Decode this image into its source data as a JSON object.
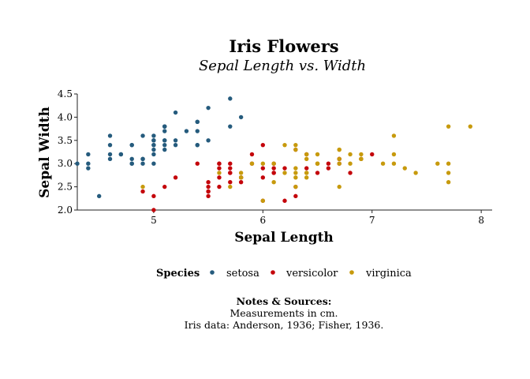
{
  "chart_data": {
    "type": "scatter",
    "title": "Iris Flowers",
    "subtitle": "Sepal Length vs. Width",
    "xlabel": "Sepal Length",
    "ylabel": "Sepal Width",
    "xlim": [
      4.3,
      8.1
    ],
    "ylim": [
      2.0,
      4.5
    ],
    "x_ticks": [
      "5",
      "6",
      "7",
      "8"
    ],
    "y_ticks": [
      "2.0",
      "2.5",
      "3.0",
      "3.5",
      "4.0",
      "4.5"
    ],
    "grid": false,
    "legend": {
      "title": "Species",
      "placement": "bottom"
    },
    "series": [
      {
        "name": "setosa",
        "color": "#255b7d",
        "points": [
          [
            5.1,
            3.5
          ],
          [
            4.9,
            3.0
          ],
          [
            4.7,
            3.2
          ],
          [
            4.6,
            3.1
          ],
          [
            5.0,
            3.6
          ],
          [
            5.4,
            3.9
          ],
          [
            4.6,
            3.4
          ],
          [
            5.0,
            3.4
          ],
          [
            4.4,
            2.9
          ],
          [
            4.9,
            3.1
          ],
          [
            5.4,
            3.7
          ],
          [
            4.8,
            3.4
          ],
          [
            4.8,
            3.0
          ],
          [
            4.3,
            3.0
          ],
          [
            5.8,
            4.0
          ],
          [
            5.7,
            4.4
          ],
          [
            5.4,
            3.9
          ],
          [
            5.1,
            3.5
          ],
          [
            5.7,
            3.8
          ],
          [
            5.1,
            3.8
          ],
          [
            5.4,
            3.4
          ],
          [
            5.1,
            3.7
          ],
          [
            4.6,
            3.6
          ],
          [
            5.1,
            3.3
          ],
          [
            4.8,
            3.4
          ],
          [
            5.0,
            3.0
          ],
          [
            5.0,
            3.4
          ],
          [
            5.2,
            3.5
          ],
          [
            5.2,
            3.4
          ],
          [
            4.7,
            3.2
          ],
          [
            4.8,
            3.1
          ],
          [
            5.4,
            3.4
          ],
          [
            5.2,
            4.1
          ],
          [
            5.5,
            4.2
          ],
          [
            4.9,
            3.1
          ],
          [
            5.0,
            3.2
          ],
          [
            5.5,
            3.5
          ],
          [
            4.9,
            3.6
          ],
          [
            4.4,
            3.0
          ],
          [
            5.1,
            3.4
          ],
          [
            5.0,
            3.5
          ],
          [
            4.5,
            2.3
          ],
          [
            4.4,
            3.2
          ],
          [
            5.0,
            3.5
          ],
          [
            5.1,
            3.8
          ],
          [
            4.8,
            3.0
          ],
          [
            5.1,
            3.8
          ],
          [
            4.6,
            3.2
          ],
          [
            5.3,
            3.7
          ],
          [
            5.0,
            3.3
          ]
        ]
      },
      {
        "name": "versicolor",
        "color": "#c4050b",
        "points": [
          [
            7.0,
            3.2
          ],
          [
            6.4,
            3.2
          ],
          [
            6.9,
            3.1
          ],
          [
            5.5,
            2.3
          ],
          [
            6.5,
            2.8
          ],
          [
            5.7,
            2.8
          ],
          [
            6.3,
            3.3
          ],
          [
            4.9,
            2.4
          ],
          [
            6.6,
            2.9
          ],
          [
            5.2,
            2.7
          ],
          [
            5.0,
            2.0
          ],
          [
            5.9,
            3.0
          ],
          [
            6.0,
            2.2
          ],
          [
            6.1,
            2.9
          ],
          [
            5.6,
            2.9
          ],
          [
            6.7,
            3.1
          ],
          [
            5.6,
            3.0
          ],
          [
            5.8,
            2.7
          ],
          [
            6.2,
            2.2
          ],
          [
            5.6,
            2.5
          ],
          [
            5.9,
            3.2
          ],
          [
            6.1,
            2.8
          ],
          [
            6.3,
            2.5
          ],
          [
            6.1,
            2.8
          ],
          [
            6.4,
            2.9
          ],
          [
            6.6,
            3.0
          ],
          [
            6.8,
            2.8
          ],
          [
            6.7,
            3.0
          ],
          [
            6.0,
            2.9
          ],
          [
            5.7,
            2.6
          ],
          [
            5.5,
            2.4
          ],
          [
            5.5,
            2.4
          ],
          [
            5.8,
            2.7
          ],
          [
            6.0,
            2.7
          ],
          [
            5.4,
            3.0
          ],
          [
            6.0,
            3.4
          ],
          [
            6.7,
            3.1
          ],
          [
            6.3,
            2.3
          ],
          [
            5.6,
            3.0
          ],
          [
            5.5,
            2.5
          ],
          [
            5.5,
            2.6
          ],
          [
            6.1,
            3.0
          ],
          [
            5.8,
            2.6
          ],
          [
            5.0,
            2.3
          ],
          [
            5.6,
            2.7
          ],
          [
            5.7,
            3.0
          ],
          [
            5.7,
            2.9
          ],
          [
            6.2,
            2.9
          ],
          [
            5.1,
            2.5
          ],
          [
            5.7,
            2.8
          ]
        ]
      },
      {
        "name": "virginica",
        "color": "#c79a0d",
        "points": [
          [
            6.3,
            3.3
          ],
          [
            5.8,
            2.7
          ],
          [
            7.1,
            3.0
          ],
          [
            6.3,
            2.9
          ],
          [
            6.5,
            3.0
          ],
          [
            7.6,
            3.0
          ],
          [
            4.9,
            2.5
          ],
          [
            7.3,
            2.9
          ],
          [
            6.7,
            2.5
          ],
          [
            7.2,
            3.6
          ],
          [
            6.5,
            3.2
          ],
          [
            6.4,
            2.7
          ],
          [
            6.8,
            3.0
          ],
          [
            5.7,
            2.5
          ],
          [
            5.8,
            2.8
          ],
          [
            6.4,
            3.2
          ],
          [
            6.5,
            3.0
          ],
          [
            7.7,
            3.8
          ],
          [
            7.7,
            2.6
          ],
          [
            6.0,
            2.2
          ],
          [
            6.9,
            3.2
          ],
          [
            5.6,
            2.8
          ],
          [
            7.7,
            2.8
          ],
          [
            6.3,
            2.7
          ],
          [
            6.7,
            3.3
          ],
          [
            7.2,
            3.2
          ],
          [
            6.2,
            2.8
          ],
          [
            6.1,
            3.0
          ],
          [
            6.4,
            2.8
          ],
          [
            7.2,
            3.0
          ],
          [
            7.4,
            2.8
          ],
          [
            7.9,
            3.8
          ],
          [
            6.4,
            2.8
          ],
          [
            6.3,
            2.8
          ],
          [
            6.1,
            2.6
          ],
          [
            7.7,
            3.0
          ],
          [
            6.3,
            3.4
          ],
          [
            6.4,
            3.1
          ],
          [
            6.0,
            3.0
          ],
          [
            6.9,
            3.1
          ],
          [
            6.7,
            3.1
          ],
          [
            6.9,
            3.1
          ],
          [
            5.8,
            2.7
          ],
          [
            6.8,
            3.2
          ],
          [
            6.7,
            3.3
          ],
          [
            6.7,
            3.0
          ],
          [
            6.3,
            2.5
          ],
          [
            6.5,
            3.0
          ],
          [
            6.2,
            3.4
          ],
          [
            5.9,
            3.0
          ]
        ]
      }
    ]
  },
  "notes": {
    "title": "Notes & Sources:",
    "lines": [
      "Measurements in cm.",
      "Iris data: Anderson, 1936; Fisher, 1936."
    ]
  }
}
